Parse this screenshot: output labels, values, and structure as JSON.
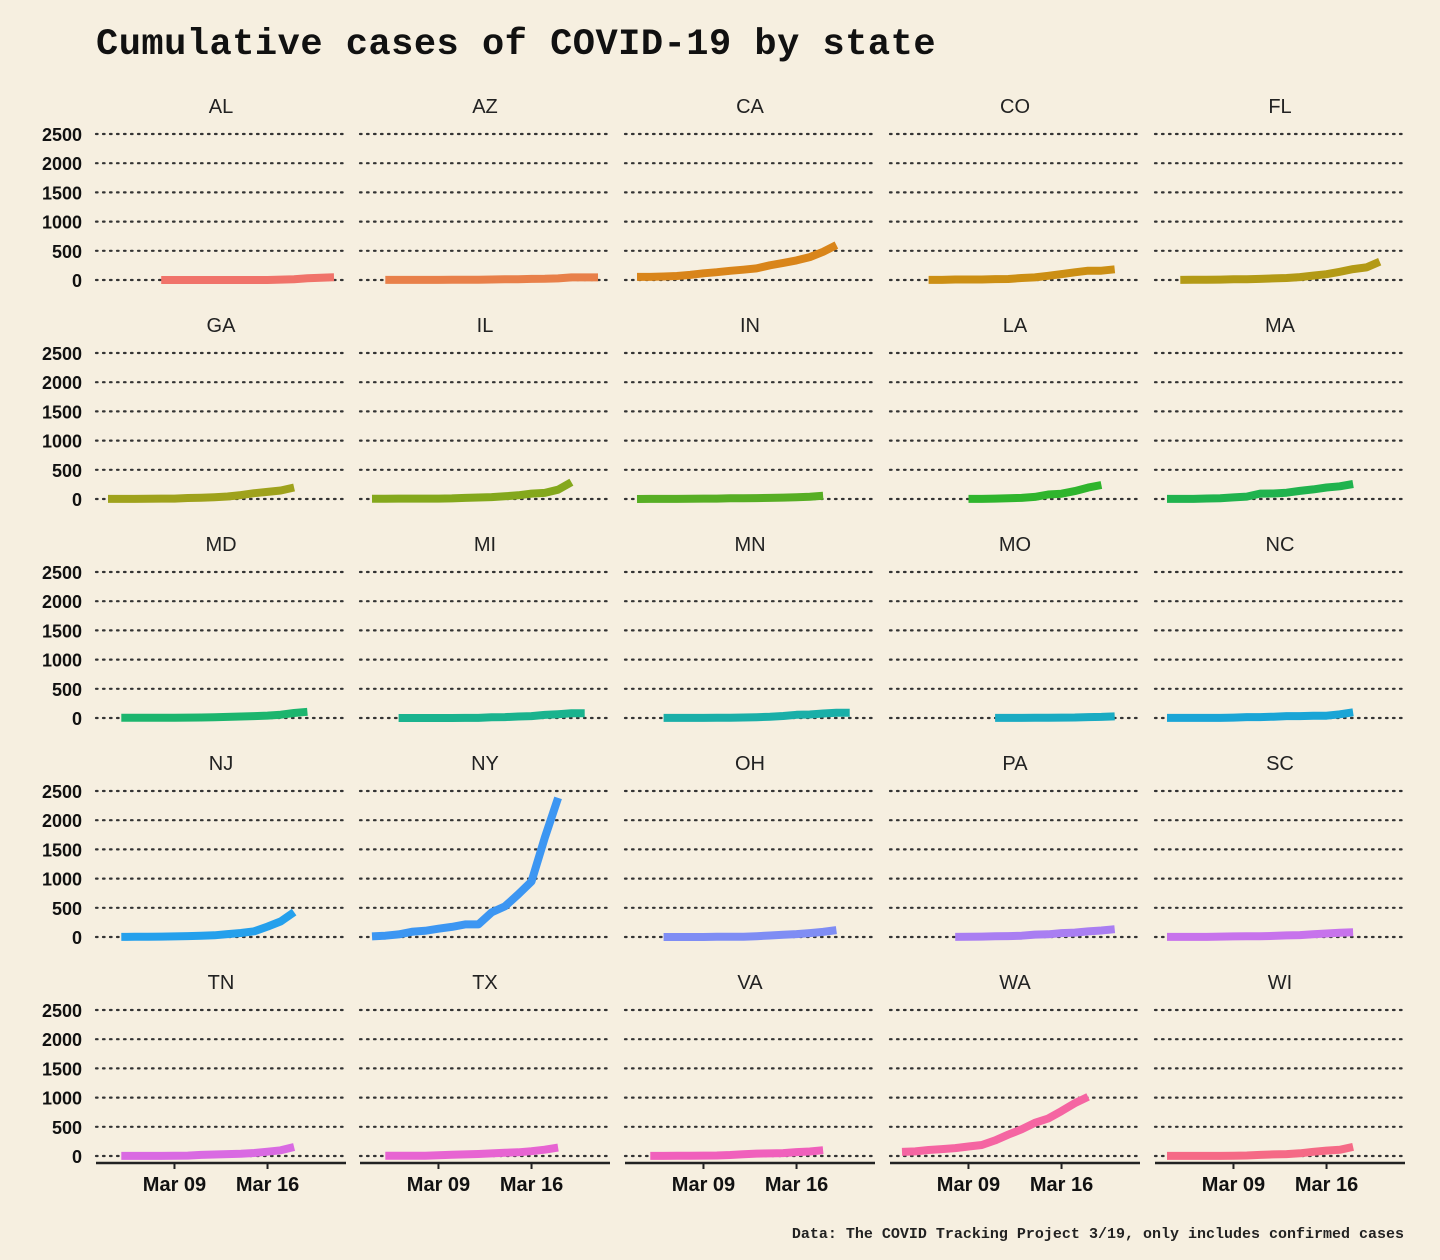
{
  "chart_data": {
    "type": "line",
    "layout": "small-multiples",
    "title": "Cumulative cases of COVID-19 by state",
    "caption": "Data: The COVID Tracking Project 3/19, only includes confirmed cases",
    "xlabel": "",
    "ylabel": "",
    "ylim": [
      0,
      2500
    ],
    "y_ticks": [
      0,
      500,
      1000,
      1500,
      2000,
      2500
    ],
    "x_range_days": [
      0,
      17
    ],
    "x_ticks": [
      {
        "day": 5,
        "label": "Mar 09"
      },
      {
        "day": 12,
        "label": "Mar 16"
      }
    ],
    "x_day_zero": "Mar 04",
    "grid": "horizontal dotted",
    "panels": [
      {
        "state": "AL",
        "color": "#f0736a",
        "start_day": 4,
        "values": [
          0,
          0,
          0,
          0,
          0,
          0,
          0,
          0,
          0,
          6,
          12,
          29,
          39,
          46
        ]
      },
      {
        "state": "AZ",
        "color": "#e8804a",
        "start_day": 1,
        "values": [
          1,
          2,
          2,
          2,
          2,
          3,
          3,
          5,
          9,
          12,
          13,
          18,
          20,
          27,
          44,
          44,
          44
        ]
      },
      {
        "state": "CA",
        "color": "#d9851a",
        "start_day": 0,
        "values": [
          53,
          53,
          60,
          69,
          88,
          114,
          133,
          157,
          177,
          198,
          252,
          293,
          335,
          392,
          483,
          598
        ]
      },
      {
        "state": "CO",
        "color": "#cc8f14",
        "start_day": 2,
        "values": [
          2,
          2,
          8,
          8,
          8,
          15,
          17,
          34,
          45,
          72,
          101,
          131,
          160,
          160,
          184
        ]
      },
      {
        "state": "FL",
        "color": "#b39a16",
        "start_day": 1,
        "values": [
          2,
          3,
          4,
          7,
          14,
          14,
          18,
          28,
          35,
          50,
          76,
          100,
          141,
          186,
          216,
          314
        ]
      },
      {
        "state": "GA",
        "color": "#9fa21c",
        "start_day": 0,
        "values": [
          2,
          2,
          2,
          5,
          6,
          7,
          17,
          22,
          31,
          42,
          66,
          99,
          121,
          146,
          197
        ]
      },
      {
        "state": "IL",
        "color": "#84a81c",
        "start_day": 0,
        "values": [
          4,
          5,
          6,
          6,
          7,
          7,
          11,
          19,
          25,
          32,
          46,
          64,
          93,
          105,
          160,
          288
        ]
      },
      {
        "state": "IN",
        "color": "#57ae24",
        "start_day": 0,
        "values": [
          0,
          1,
          2,
          2,
          4,
          6,
          6,
          12,
          12,
          15,
          19,
          24,
          30,
          39,
          56
        ]
      },
      {
        "state": "LA",
        "color": "#2fb52d",
        "start_day": 5,
        "values": [
          1,
          1,
          6,
          13,
          19,
          36,
          77,
          91,
          136,
          196,
          240
        ]
      },
      {
        "state": "MA",
        "color": "#20b34e",
        "start_day": 0,
        "values": [
          1,
          1,
          2,
          8,
          13,
          28,
          41,
          92,
          95,
          108,
          138,
          164,
          197,
          218,
          256
        ]
      },
      {
        "state": "MD",
        "color": "#1cb56e",
        "start_day": 1,
        "values": [
          3,
          3,
          3,
          5,
          5,
          6,
          9,
          12,
          18,
          26,
          32,
          41,
          57,
          85,
          107
        ]
      },
      {
        "state": "MI",
        "color": "#1ab38e",
        "start_day": 2,
        "values": [
          0,
          0,
          0,
          0,
          0,
          2,
          2,
          12,
          16,
          25,
          33,
          53,
          65,
          80,
          80
        ]
      },
      {
        "state": "MN",
        "color": "#1aafa8",
        "start_day": 2,
        "values": [
          1,
          1,
          2,
          2,
          3,
          5,
          9,
          14,
          21,
          35,
          54,
          60,
          77,
          89,
          89
        ]
      },
      {
        "state": "MO",
        "color": "#1aabc2",
        "start_day": 7,
        "values": [
          1,
          1,
          1,
          4,
          5,
          6,
          8,
          15,
          18,
          28
        ]
      },
      {
        "state": "NC",
        "color": "#1aa5d6",
        "start_day": 0,
        "values": [
          1,
          1,
          2,
          2,
          2,
          7,
          15,
          16,
          23,
          32,
          33,
          38,
          40,
          64,
          97
        ]
      },
      {
        "state": "NJ",
        "color": "#25a0ec",
        "start_day": 1,
        "values": [
          2,
          4,
          4,
          6,
          11,
          15,
          23,
          29,
          50,
          69,
          98,
          178,
          267,
          427
        ]
      },
      {
        "state": "NY",
        "color": "#3c96f2",
        "start_day": 0,
        "values": [
          11,
          22,
          44,
          89,
          106,
          142,
          173,
          216,
          216,
          421,
          524,
          729,
          950,
          1700,
          2382
        ]
      },
      {
        "state": "OH",
        "color": "#7f8df4",
        "start_day": 2,
        "values": [
          0,
          0,
          0,
          0,
          3,
          4,
          5,
          13,
          26,
          37,
          50,
          67,
          88,
          119
        ]
      },
      {
        "state": "PA",
        "color": "#a97ef2",
        "start_day": 4,
        "values": [
          2,
          4,
          6,
          12,
          16,
          22,
          41,
          47,
          66,
          76,
          96,
          112,
          133
        ]
      },
      {
        "state": "SC",
        "color": "#c773ec",
        "start_day": 0,
        "values": [
          2,
          2,
          2,
          2,
          7,
          10,
          12,
          13,
          19,
          28,
          33,
          47,
          60,
          72,
          81
        ]
      },
      {
        "state": "TN",
        "color": "#d96ae2",
        "start_day": 1,
        "values": [
          1,
          1,
          1,
          2,
          3,
          7,
          18,
          26,
          32,
          39,
          52,
          73,
          98,
          154
        ]
      },
      {
        "state": "TX",
        "color": "#e764d2",
        "start_day": 1,
        "values": [
          3,
          3,
          3,
          5,
          12,
          21,
          27,
          35,
          45,
          57,
          64,
          83,
          108,
          143
        ]
      },
      {
        "state": "VA",
        "color": "#f060bc",
        "start_day": 1,
        "values": [
          2,
          2,
          3,
          3,
          7,
          9,
          17,
          30,
          41,
          45,
          49,
          67,
          77,
          99
        ]
      },
      {
        "state": "WA",
        "color": "#f565a2",
        "start_day": 0,
        "values": [
          70,
          79,
          102,
          118,
          136,
          162,
          189,
          267,
          366,
          457,
          568,
          642,
          769,
          904,
          1014
        ]
      },
      {
        "state": "WI",
        "color": "#f56a86",
        "start_day": 0,
        "values": [
          1,
          1,
          1,
          1,
          2,
          5,
          8,
          19,
          27,
          32,
          47,
          72,
          92,
          106,
          155
        ]
      }
    ]
  }
}
